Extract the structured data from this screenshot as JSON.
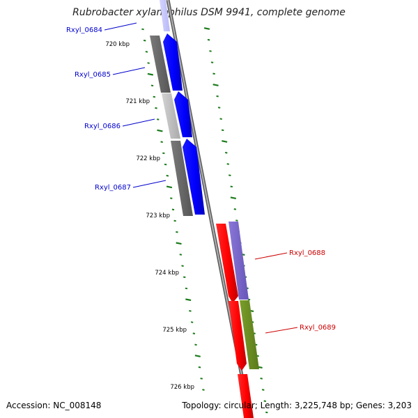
{
  "title": "Rubrobacter xylanophilus DSM 9941, complete genome",
  "accession_text": "Accession: NC_008148",
  "topology_text": "Topology: circular; Length: 3,225,748 bp; Genes: 3,203",
  "scale_labels": [
    "720 kbp",
    "721 kbp",
    "722 kbp",
    "723 kbp",
    "724 kbp",
    "725 kbp",
    "726 kbp"
  ],
  "genes_forward": [
    {
      "label": "Rxyl_0684",
      "color": "#0000ee"
    },
    {
      "label": "Rxyl_0685",
      "color": "#0000ee"
    },
    {
      "label": "Rxyl_0686",
      "color": "#0000ee"
    },
    {
      "label": "Rxyl_0687",
      "color": "#0000ee"
    }
  ],
  "genes_reverse": [
    {
      "label": "Rxyl_0688",
      "color": "#e00000"
    },
    {
      "label": "Rxyl_0689",
      "color": "#e00000"
    }
  ],
  "colors": {
    "forward_gene": "#0000ff",
    "reverse_gene": "#ff0000",
    "backbone": "#888888",
    "tick": "#1a7a1a",
    "forward_label": "#0000cc",
    "reverse_label": "#cc0000",
    "cog_dark_gray": "#6a6a6a",
    "cog_light_gray": "#c0c0c0",
    "cog_purple": "#7b68c8",
    "cog_olive": "#6b8e23"
  }
}
